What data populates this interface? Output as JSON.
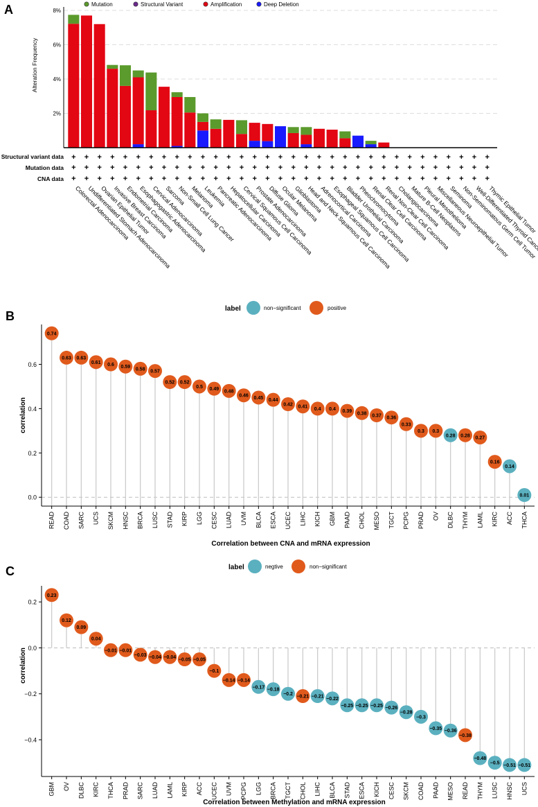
{
  "panels": {
    "a": "A",
    "b": "B",
    "c": "C"
  },
  "colors": {
    "mutation": "#5b9a2c",
    "structural": "#6a2a8c",
    "amplification": "#e30613",
    "deep_deletion": "#1a1aff",
    "positive": "#e05a1c",
    "nonsig": "#5bb0bf",
    "stem": "#c8c8c8"
  },
  "chart_data": [
    {
      "id": "A",
      "type": "bar",
      "ylabel": "Alteration Frequency",
      "yticks": [
        "2%",
        "4%",
        "6%",
        "8%"
      ],
      "ytick_values": [
        2,
        4,
        6,
        8
      ],
      "ylim": [
        0,
        8.2
      ],
      "legend": [
        "Mutation",
        "Structural Variant",
        "Amplification",
        "Deep Deletion"
      ],
      "row_labels": [
        "Structural variant data",
        "Mutation data",
        "CNA data"
      ],
      "plus_symbol": "+",
      "categories": [
        "Colorectal Adenocarcinoma",
        "Undifferentiated Stomach Adenocarcinoma",
        "Ovarian Epithelial Tumor",
        "Invasive Breast Carcinoma",
        "Endometrial Carcinoma",
        "Esophagogastric Adenocarcinoma",
        "Cervical Adenocarcinoma",
        "Sarcoma",
        "Non-Small Cell Lung Cancer",
        "Melanoma",
        "Leukemia",
        "Pancreatic Adenocarcinoma",
        "Hepatocellular Carcinoma",
        "Cervical Squamous Cell Carcinoma",
        "Prostate Adenocarcinoma",
        "Diffuse Glioma",
        "Ocular Melanoma",
        "Glioblastoma",
        "Head and Neck Squamous Cell Carcinoma",
        "Adrenocortical Carcinoma",
        "Esophageal Squamous Cell Carcinoma",
        "Bladder Urothelial Carcinoma",
        "Pheochromocytoma",
        "Renal Clear Cell Carcinoma",
        "Renal Non-Clear Cell Carcinoma",
        "Cholangiocarcinoma",
        "Mature B-Cell Neoplasms",
        "Pleural Mesothelioma",
        "Miscellaneous Neuroepithelial Tumor",
        "Seminoma",
        "Non-Seminomatous Germ Cell Tumor",
        "Well-Differentiated Thyroid Cancer",
        "Thymic Epithelial Tumor"
      ],
      "series": [
        {
          "name": "Mutation",
          "values": [
            0.52,
            0,
            0,
            0.22,
            1.2,
            0.4,
            2.2,
            0,
            0.28,
            0.9,
            0.5,
            0.55,
            0,
            0.8,
            0,
            0,
            0,
            0.35,
            0.45,
            0,
            0,
            0.4,
            0,
            0.2,
            0,
            0,
            0,
            0,
            0,
            0,
            0,
            0,
            0
          ]
        },
        {
          "name": "Structural Variant",
          "values": [
            0,
            0,
            0,
            0,
            0,
            0,
            0,
            0,
            0,
            0,
            0,
            0,
            0,
            0,
            0,
            0,
            0,
            0,
            0,
            0,
            0,
            0,
            0,
            0,
            0,
            0,
            0,
            0,
            0,
            0,
            0,
            0,
            0
          ]
        },
        {
          "name": "Amplification",
          "values": [
            7.22,
            7.7,
            7.2,
            4.6,
            3.6,
            3.9,
            2.18,
            3.55,
            2.85,
            2.05,
            0.5,
            1.1,
            1.62,
            0.8,
            1.05,
            1.0,
            0,
            0.85,
            0.55,
            1.1,
            1.05,
            0.55,
            0,
            0,
            0.3,
            0,
            0,
            0,
            0,
            0,
            0,
            0,
            0
          ]
        },
        {
          "name": "Deep Deletion",
          "values": [
            0,
            0,
            0,
            0,
            0,
            0.2,
            0,
            0,
            0.1,
            0,
            1.0,
            0,
            0,
            0,
            0.4,
            0.38,
            1.25,
            0,
            0.2,
            0,
            0,
            0,
            0.7,
            0.2,
            0,
            0,
            0,
            0,
            0,
            0,
            0,
            0,
            0
          ]
        }
      ]
    },
    {
      "id": "B",
      "type": "scatter",
      "xlabel": "Correlation between CNA and mRNA expression",
      "ylabel": "correlation",
      "yticks": [
        "0.0",
        "0.2",
        "0.4",
        "0.6"
      ],
      "ytick_values": [
        0,
        0.2,
        0.4,
        0.6
      ],
      "ylim": [
        -0.04,
        0.78
      ],
      "legend_title": "label",
      "legend": [
        "non−significant",
        "positive"
      ],
      "categories": [
        "READ",
        "COAD",
        "SARC",
        "UCS",
        "SKCM",
        "HNSC",
        "BRCA",
        "LUSC",
        "STAD",
        "KIRP",
        "LGG",
        "CESC",
        "LUAD",
        "UVM",
        "BLCA",
        "ESCA",
        "UCEC",
        "LIHC",
        "KICH",
        "GBM",
        "PAAD",
        "CHOL",
        "MESO",
        "TGCT",
        "PCPG",
        "PRAD",
        "OV",
        "DLBC",
        "THYM",
        "LAML",
        "KIRC",
        "ACC",
        "THCA"
      ],
      "values": [
        0.74,
        0.63,
        0.63,
        0.61,
        0.6,
        0.59,
        0.58,
        0.57,
        0.52,
        0.52,
        0.5,
        0.49,
        0.48,
        0.46,
        0.45,
        0.44,
        0.42,
        0.41,
        0.4,
        0.4,
        0.39,
        0.38,
        0.37,
        0.36,
        0.33,
        0.3,
        0.3,
        0.28,
        0.28,
        0.27,
        0.16,
        0.14,
        0.01
      ],
      "labels": [
        "0.74",
        "0.63",
        "0.63",
        "0.61",
        "0.6",
        "0.59",
        "0.58",
        "0.57",
        "0.52",
        "0.52",
        "0.5",
        "0.49",
        "0.48",
        "0.46",
        "0.45",
        "0.44",
        "0.42",
        "0.41",
        "0.4",
        "0.4",
        "0.39",
        "0.38",
        "0.37",
        "0.36",
        "0.33",
        "0.3",
        "0.3",
        "0.28",
        "0.28",
        "0.27",
        "0.16",
        "0.14",
        "0.01"
      ],
      "groups": [
        "p",
        "p",
        "p",
        "p",
        "p",
        "p",
        "p",
        "p",
        "p",
        "p",
        "p",
        "p",
        "p",
        "p",
        "p",
        "p",
        "p",
        "p",
        "p",
        "p",
        "p",
        "p",
        "p",
        "p",
        "p",
        "p",
        "p",
        "n",
        "p",
        "p",
        "p",
        "n",
        "n"
      ]
    },
    {
      "id": "C",
      "type": "scatter",
      "xlabel": "Correlation between Methylation and mRNA expression",
      "ylabel": "correlation",
      "yticks": [
        "−0.4",
        "−0.2",
        "0.0",
        "0.2"
      ],
      "ytick_values": [
        -0.4,
        -0.2,
        0,
        0.2
      ],
      "ylim": [
        -0.56,
        0.27
      ],
      "legend_title": "label",
      "legend": [
        "negtive",
        "non−significant"
      ],
      "categories": [
        "GBM",
        "OV",
        "DLBC",
        "KIRC",
        "THCA",
        "PRAD",
        "SARC",
        "LUAD",
        "LAML",
        "KIRP",
        "ACC",
        "UCEC",
        "UVM",
        "PCPG",
        "LGG",
        "BRCA",
        "TGCT",
        "CHOL",
        "LIHC",
        "BLCA",
        "STAD",
        "ESCA",
        "KICH",
        "CESC",
        "SKCM",
        "COAD",
        "PAAD",
        "MESO",
        "READ",
        "THYM",
        "LUSC",
        "HNSC",
        "UCS"
      ],
      "values": [
        0.23,
        0.12,
        0.09,
        0.04,
        -0.01,
        -0.01,
        -0.03,
        -0.04,
        -0.04,
        -0.05,
        -0.05,
        -0.1,
        -0.14,
        -0.14,
        -0.17,
        -0.18,
        -0.2,
        -0.21,
        -0.21,
        -0.22,
        -0.25,
        -0.25,
        -0.25,
        -0.26,
        -0.28,
        -0.3,
        -0.35,
        -0.36,
        -0.38,
        -0.48,
        -0.5,
        -0.51,
        -0.51
      ],
      "labels": [
        "0.23",
        "0.12",
        "0.09",
        "0.04",
        "−0.01",
        "−0.01",
        "−0.03",
        "−0.04",
        "−0.04",
        "−0.05",
        "−0.05",
        "−0.1",
        "−0.14",
        "−0.14",
        "−0.17",
        "−0.18",
        "−0.2",
        "−0.21",
        "−0.21",
        "−0.22",
        "−0.25",
        "−0.25",
        "−0.25",
        "−0.26",
        "−0.28",
        "−0.3",
        "−0.35",
        "−0.36",
        "−0.38",
        "−0.48",
        "−0.5",
        "−0.51",
        "−0.51"
      ],
      "groups": [
        "s",
        "s",
        "s",
        "s",
        "s",
        "s",
        "s",
        "s",
        "s",
        "s",
        "s",
        "s",
        "s",
        "s",
        "n",
        "n",
        "n",
        "s",
        "n",
        "n",
        "n",
        "n",
        "n",
        "n",
        "n",
        "n",
        "n",
        "n",
        "s",
        "n",
        "n",
        "n",
        "n"
      ]
    }
  ]
}
